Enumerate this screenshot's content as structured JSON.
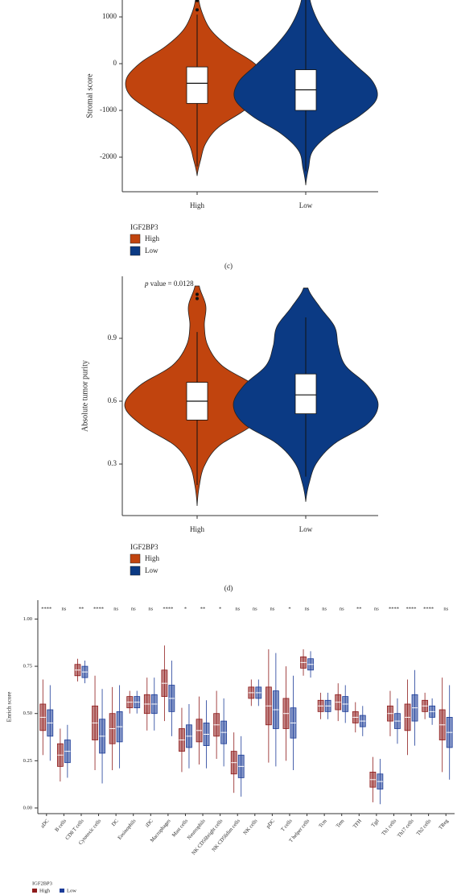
{
  "chart_data": [
    {
      "type": "violin",
      "y_label": "Stromal score",
      "ylim": [
        -2740,
        1362
      ],
      "yticks": [
        -2000,
        -1000,
        0,
        1000
      ],
      "categories": [
        "High",
        "Low"
      ],
      "legend_title": "IGF2BP3",
      "caption": "(c)",
      "series": [
        {
          "name": "High",
          "color": "#c1440e",
          "violin_min": -2400,
          "violin_max": 1400,
          "density": [
            0,
            0.05,
            0.12,
            0.3,
            0.65,
            0.95,
            1.0,
            0.8,
            0.45,
            0.2,
            0.08,
            0.02
          ],
          "median": -420,
          "q1": -850,
          "q3": -70,
          "whisker_low": -2200,
          "whisker_high": 1050,
          "outliers": [
            1150,
            1350
          ]
        },
        {
          "name": "Low",
          "color": "#0b3a84",
          "violin_min": -2600,
          "violin_max": 1450,
          "density": [
            0,
            0.04,
            0.1,
            0.35,
            0.75,
            1.0,
            0.95,
            0.7,
            0.45,
            0.25,
            0.12,
            0.05
          ],
          "median": -560,
          "q1": -1000,
          "q3": -130,
          "whisker_low": -2300,
          "whisker_high": 1400,
          "outliers": []
        }
      ]
    },
    {
      "type": "violin",
      "y_label": "Absolute tumor purity",
      "ylim": [
        0.054,
        1.196
      ],
      "yticks": [
        0.3,
        0.6,
        0.9
      ],
      "annotation_italic": "p",
      "annotation": " value = 0.0128",
      "categories": [
        "High",
        "Low"
      ],
      "legend_title": "IGF2BP3",
      "caption": "(d)",
      "series": [
        {
          "name": "High",
          "color": "#c1440e",
          "violin_min": 0.1,
          "violin_max": 1.15,
          "density": [
            0,
            0.03,
            0.1,
            0.3,
            0.75,
            1.0,
            0.8,
            0.35,
            0.15,
            0.1,
            0.12,
            0.03
          ],
          "median": 0.6,
          "q1": 0.51,
          "q3": 0.69,
          "whisker_low": 0.2,
          "whisker_high": 0.93,
          "outliers": [
            1.09,
            1.11
          ]
        },
        {
          "name": "Low",
          "color": "#0b3a84",
          "violin_min": 0.12,
          "violin_max": 1.14,
          "density": [
            0,
            0.05,
            0.15,
            0.4,
            0.85,
            1.0,
            0.85,
            0.55,
            0.45,
            0.4,
            0.2,
            0.03
          ],
          "median": 0.63,
          "q1": 0.54,
          "q3": 0.73,
          "whisker_low": 0.24,
          "whisker_high": 1.0,
          "outliers": []
        }
      ]
    },
    {
      "type": "box",
      "y_label": "Enrich score",
      "ylim": [
        -0.03,
        1.1
      ],
      "yticks": [
        {
          "value": 0,
          "label": "0.00"
        },
        {
          "value": 0.25,
          "label": "0.25"
        },
        {
          "value": 0.5,
          "label": "0.50"
        },
        {
          "value": 0.75,
          "label": "0.75"
        },
        {
          "value": 1,
          "label": "1.00"
        }
      ],
      "categories": [
        "aDC",
        "B cells",
        "CD8 T cells",
        "Cytotoxic cells",
        "DC",
        "Eosinophils",
        "iDC",
        "Macrophages",
        "Mast cells",
        "Neutrophils",
        "NK CD56bright cells",
        "NK CD56dim cells",
        "NK cells",
        "pDC",
        "T cells",
        "T helper cells",
        "Tcm",
        "Tem",
        "TFH",
        "Tgd",
        "Th1 cells",
        "Th17 cells",
        "Th2 cells",
        "TReg"
      ],
      "significance": [
        "****",
        "ns",
        "**",
        "****",
        "ns",
        "ns",
        "ns",
        "****",
        "*",
        "**",
        "*",
        "ns",
        "ns",
        "ns",
        "*",
        "ns",
        "ns",
        "ns",
        "**",
        "ns",
        "****",
        "****",
        "****",
        "ns"
      ],
      "legend_title": "IGF2BP3",
      "series": [
        {
          "name": "High",
          "color": "#8e1b1b",
          "median": [
            0.48,
            0.28,
            0.73,
            0.45,
            0.42,
            0.56,
            0.55,
            0.66,
            0.36,
            0.41,
            0.44,
            0.24,
            0.61,
            0.54,
            0.5,
            0.77,
            0.54,
            0.56,
            0.48,
            0.15,
            0.5,
            0.48,
            0.54,
            0.44
          ],
          "q1": [
            0.41,
            0.22,
            0.7,
            0.36,
            0.34,
            0.53,
            0.5,
            0.59,
            0.3,
            0.35,
            0.38,
            0.18,
            0.58,
            0.44,
            0.42,
            0.74,
            0.51,
            0.52,
            0.45,
            0.11,
            0.46,
            0.41,
            0.51,
            0.36
          ],
          "q3": [
            0.55,
            0.34,
            0.76,
            0.54,
            0.5,
            0.59,
            0.6,
            0.73,
            0.42,
            0.47,
            0.5,
            0.3,
            0.64,
            0.64,
            0.58,
            0.8,
            0.57,
            0.6,
            0.51,
            0.19,
            0.54,
            0.55,
            0.57,
            0.52
          ],
          "whisker_low": [
            0.28,
            0.14,
            0.67,
            0.2,
            0.2,
            0.5,
            0.41,
            0.46,
            0.19,
            0.23,
            0.26,
            0.08,
            0.54,
            0.24,
            0.25,
            0.7,
            0.47,
            0.46,
            0.4,
            0.03,
            0.38,
            0.28,
            0.47,
            0.19
          ],
          "whisker_high": [
            0.68,
            0.42,
            0.79,
            0.7,
            0.64,
            0.62,
            0.69,
            0.86,
            0.53,
            0.59,
            0.62,
            0.4,
            0.68,
            0.84,
            0.75,
            0.84,
            0.61,
            0.66,
            0.56,
            0.27,
            0.62,
            0.68,
            0.61,
            0.69
          ]
        },
        {
          "name": "Low",
          "color": "#1c3c98",
          "median": [
            0.45,
            0.3,
            0.72,
            0.38,
            0.43,
            0.56,
            0.55,
            0.58,
            0.38,
            0.39,
            0.4,
            0.22,
            0.61,
            0.52,
            0.45,
            0.76,
            0.54,
            0.55,
            0.46,
            0.14,
            0.46,
            0.53,
            0.51,
            0.4
          ],
          "q1": [
            0.38,
            0.24,
            0.69,
            0.29,
            0.35,
            0.53,
            0.5,
            0.51,
            0.32,
            0.33,
            0.34,
            0.16,
            0.58,
            0.42,
            0.37,
            0.73,
            0.51,
            0.51,
            0.43,
            0.1,
            0.42,
            0.46,
            0.48,
            0.32
          ],
          "q3": [
            0.52,
            0.36,
            0.75,
            0.47,
            0.51,
            0.59,
            0.6,
            0.65,
            0.44,
            0.45,
            0.46,
            0.28,
            0.64,
            0.62,
            0.53,
            0.79,
            0.57,
            0.59,
            0.49,
            0.18,
            0.5,
            0.6,
            0.54,
            0.48
          ],
          "whisker_low": [
            0.25,
            0.16,
            0.66,
            0.13,
            0.21,
            0.5,
            0.41,
            0.38,
            0.21,
            0.21,
            0.22,
            0.06,
            0.54,
            0.22,
            0.2,
            0.69,
            0.47,
            0.45,
            0.38,
            0.02,
            0.34,
            0.33,
            0.44,
            0.15
          ],
          "whisker_high": [
            0.65,
            0.44,
            0.78,
            0.63,
            0.65,
            0.62,
            0.69,
            0.78,
            0.55,
            0.57,
            0.58,
            0.38,
            0.68,
            0.82,
            0.7,
            0.83,
            0.61,
            0.65,
            0.54,
            0.26,
            0.58,
            0.73,
            0.58,
            0.65
          ]
        }
      ]
    }
  ]
}
